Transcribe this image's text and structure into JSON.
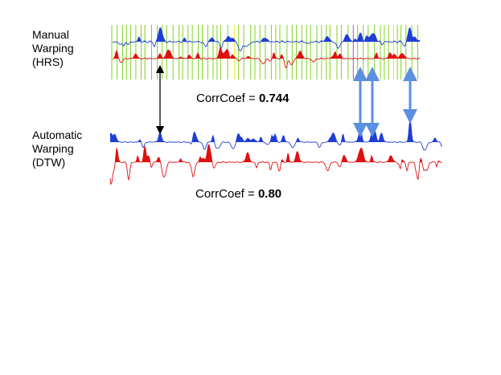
{
  "manual": {
    "label_lines": [
      "Manual",
      "Warping",
      "(HRS)"
    ],
    "corr_prefix": "CorrCoef = ",
    "corr_value": "0.744"
  },
  "automatic": {
    "label_lines": [
      "Automatic",
      "Warping",
      "(DTW)"
    ],
    "corr_prefix": "CorrCoef = ",
    "corr_value": "0.80"
  },
  "colors": {
    "blue_signal": "#1f3ed6",
    "red_signal": "#e01010",
    "thin_line": "#666666",
    "grid_green": "#7ed321",
    "grid_yellow": "#f2e600",
    "grid_purple": "#9b59b6",
    "arrow_blue": "#5b8fe0",
    "arrow_black": "#000000"
  }
}
